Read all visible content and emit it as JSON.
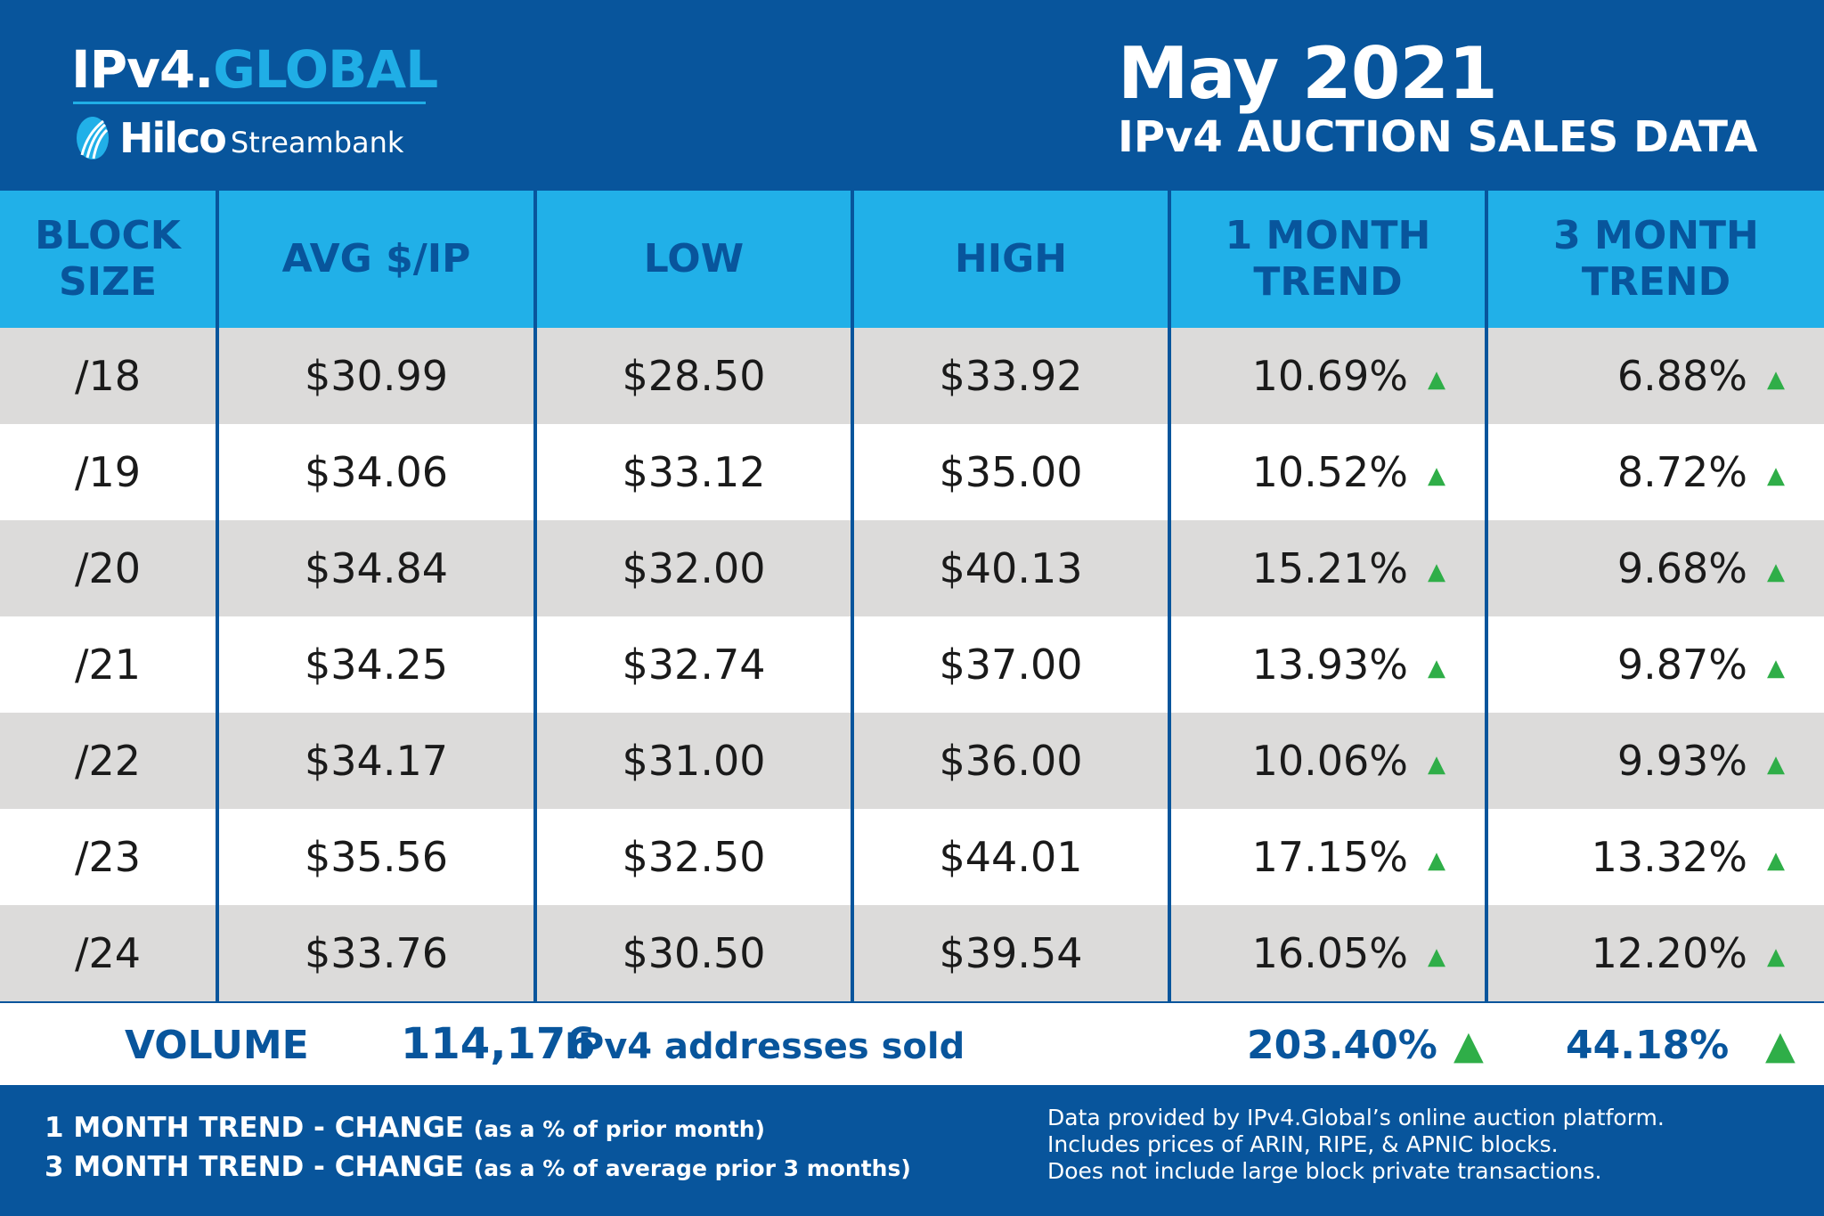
{
  "brand": {
    "logo_part1": "IPv4.",
    "logo_part2": "GLOBAL",
    "hilco": "Hilco",
    "streambank": "Streambank"
  },
  "title": {
    "line1": "May 2021",
    "line2": "IPv4 AUCTION SALES DATA"
  },
  "colors": {
    "dark_blue": "#08559c",
    "light_blue": "#21b0e8",
    "up_green": "#2fae48"
  },
  "columns": [
    "BLOCK SIZE",
    "AVG $/IP",
    "LOW",
    "HIGH",
    "1 MONTH TREND",
    "3 MONTH TREND"
  ],
  "rows": [
    {
      "block": "/18",
      "avg": "$30.99",
      "low": "$28.50",
      "high": "$33.92",
      "m1": "10.69%",
      "m3": "6.88%"
    },
    {
      "block": "/19",
      "avg": "$34.06",
      "low": "$33.12",
      "high": "$35.00",
      "m1": "10.52%",
      "m3": "8.72%"
    },
    {
      "block": "/20",
      "avg": "$34.84",
      "low": "$32.00",
      "high": "$40.13",
      "m1": "15.21%",
      "m3": "9.68%"
    },
    {
      "block": "/21",
      "avg": "$34.25",
      "low": "$32.74",
      "high": "$37.00",
      "m1": "13.93%",
      "m3": "9.87%"
    },
    {
      "block": "/22",
      "avg": "$34.17",
      "low": "$31.00",
      "high": "$36.00",
      "m1": "10.06%",
      "m3": "9.93%"
    },
    {
      "block": "/23",
      "avg": "$35.56",
      "low": "$32.50",
      "high": "$44.01",
      "m1": "17.15%",
      "m3": "13.32%"
    },
    {
      "block": "/24",
      "avg": "$33.76",
      "low": "$30.50",
      "high": "$39.54",
      "m1": "16.05%",
      "m3": "12.20%"
    }
  ],
  "trend_icon": "up-triangle-icon",
  "volume": {
    "label": "VOLUME",
    "count": "114,176",
    "text": "IPv4 addresses sold",
    "m1": "203.40%",
    "m3": "44.18%"
  },
  "footer": {
    "legend1_bold": "1 MONTH TREND - CHANGE",
    "legend1_note": "(as a % of prior month)",
    "legend2_bold": "3 MONTH TREND - CHANGE",
    "legend2_note": "(as a % of average prior 3 months)",
    "note1": "Data provided by IPv4.Global’s online auction platform.",
    "note2": "Includes prices of ARIN, RIPE, & APNIC blocks.",
    "note3": "Does not include large block private transactions."
  }
}
